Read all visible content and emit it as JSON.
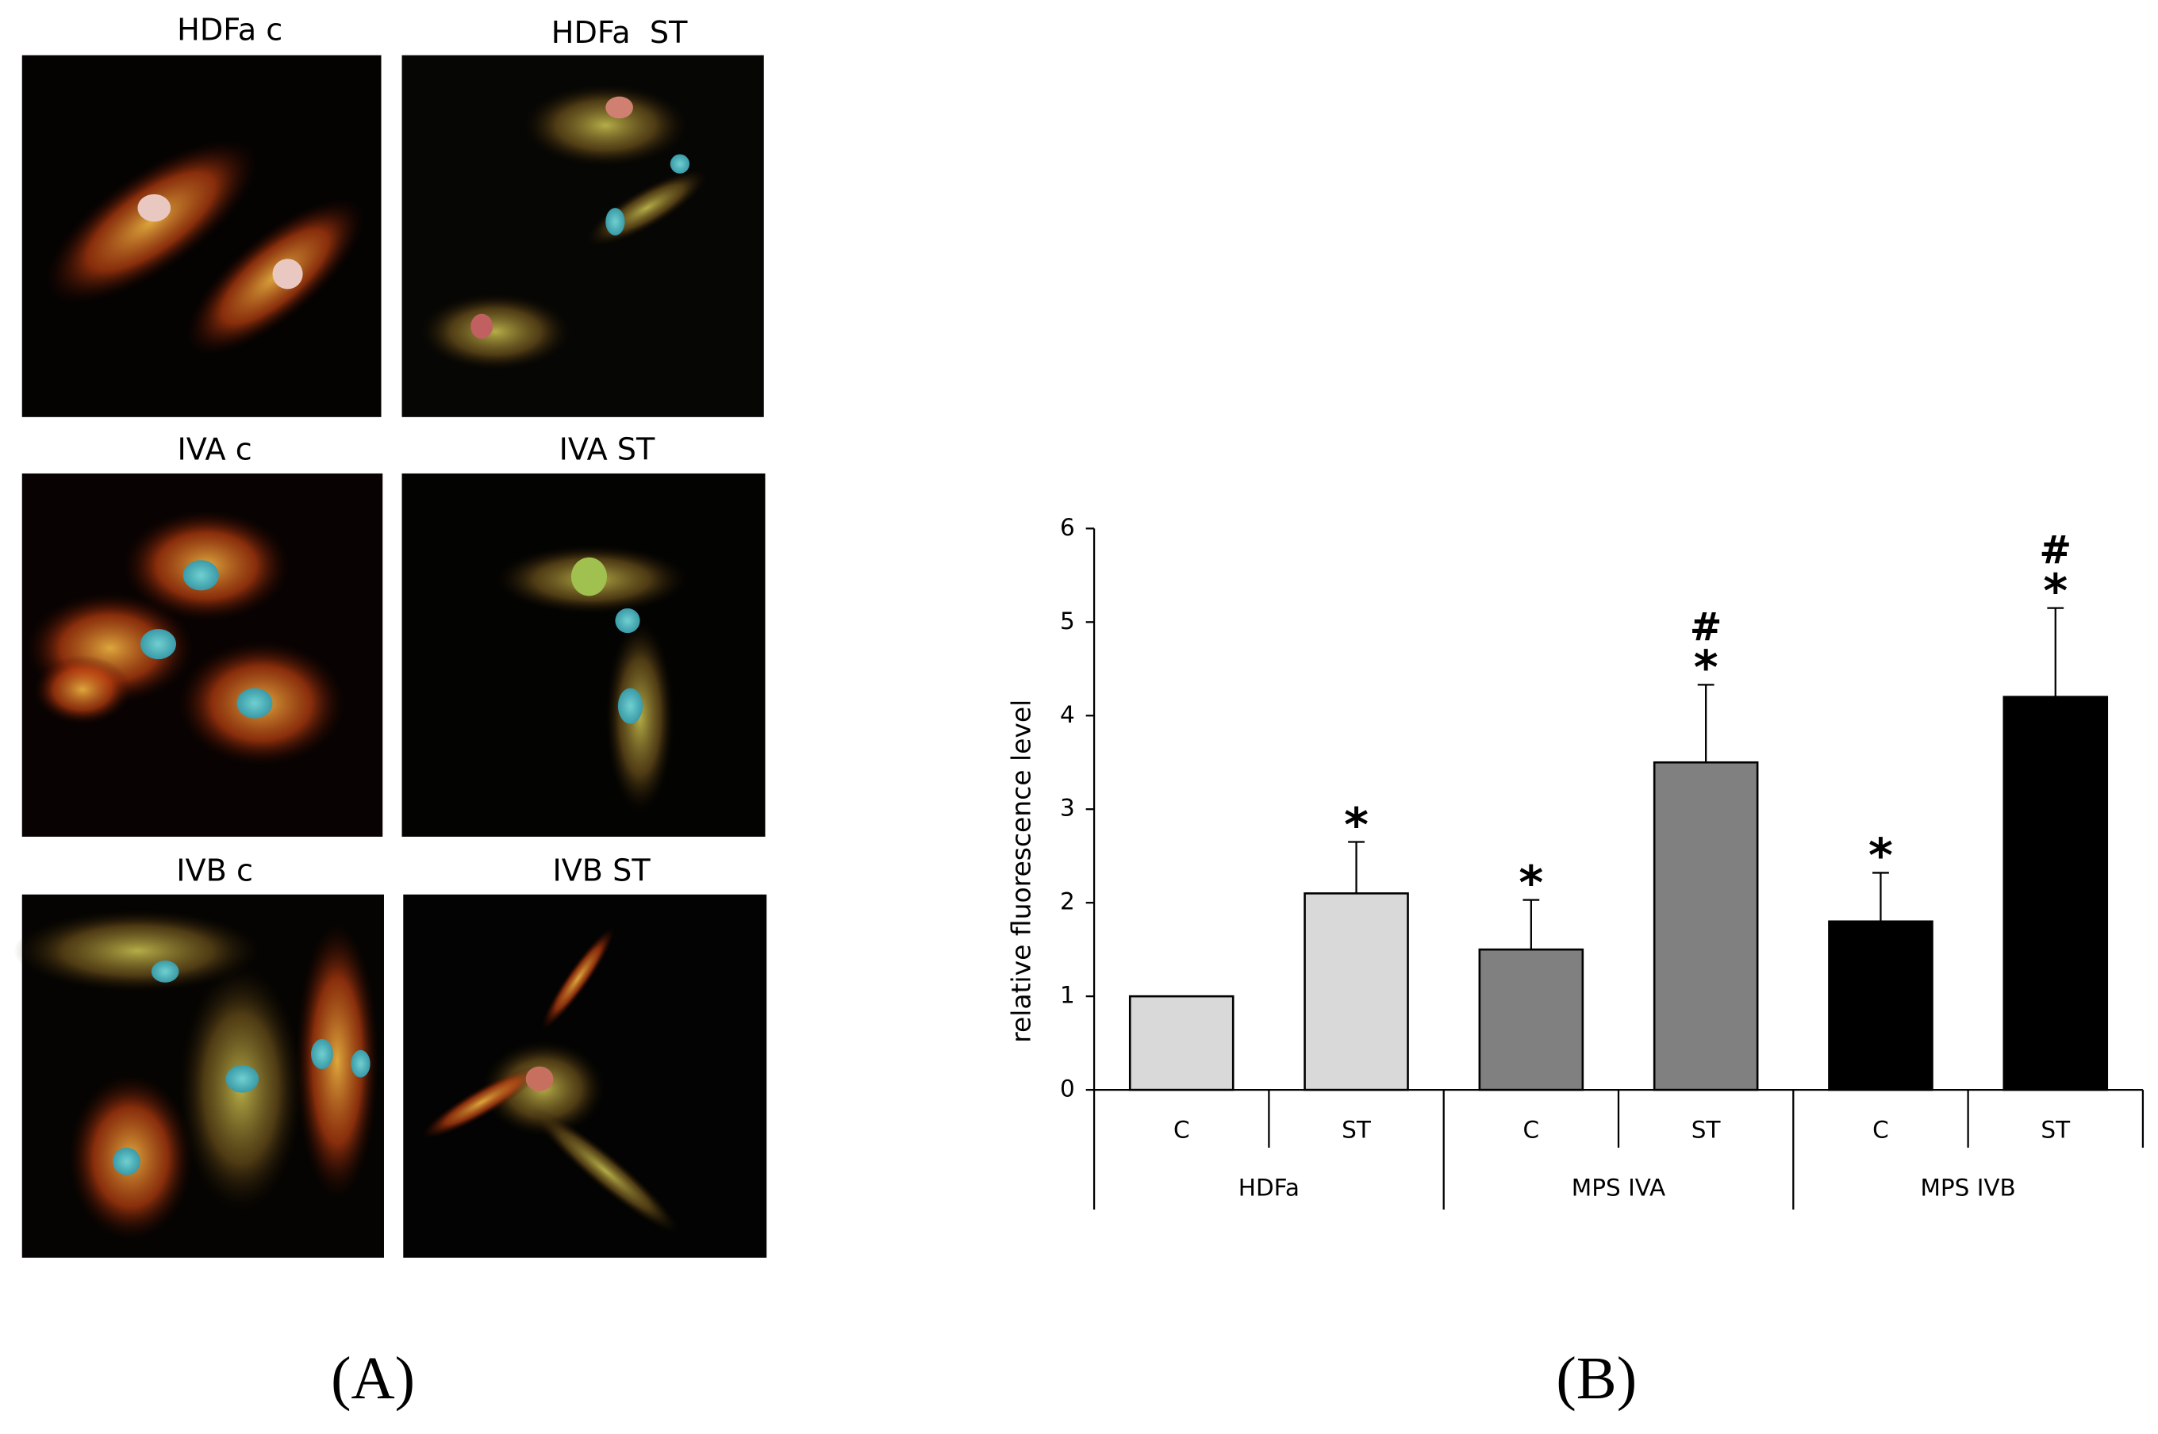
{
  "panel_a": {
    "images": [
      "HDFa c",
      "HDFa  ST",
      "IVA c",
      "IVA ST",
      "IVB c",
      "IVB ST"
    ]
  },
  "panel_labels": {
    "a": "(A)",
    "b": "(B)"
  },
  "chart_data": {
    "type": "bar",
    "y_label": "relative fluorescence level",
    "categories": [
      "C",
      "ST",
      "C",
      "ST",
      "C",
      "ST"
    ],
    "groups": [
      "HDFa",
      "MPS IVA",
      "MPS IVB"
    ],
    "values": [
      1,
      2.1,
      1.5,
      3.5,
      1.8,
      4.2
    ],
    "errors": [
      null,
      0.55,
      0.53,
      0.83,
      0.52,
      0.95
    ],
    "colors": [
      "#d9d9d9",
      "#d9d9d9",
      "#808080",
      "#808080",
      "#000000",
      "#000000"
    ],
    "markers": [
      null,
      [
        "*"
      ],
      [
        "*"
      ],
      [
        "#",
        "*"
      ],
      [
        "*"
      ],
      [
        "#",
        "*"
      ]
    ],
    "ylim": [
      0,
      6
    ],
    "yticks": [
      0,
      1,
      2,
      3,
      4,
      5,
      6
    ]
  }
}
